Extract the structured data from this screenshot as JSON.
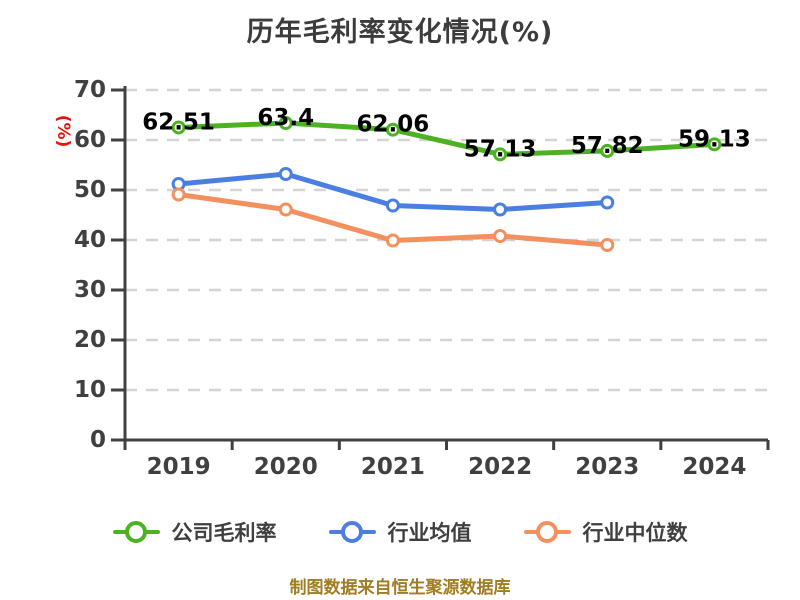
{
  "page": {
    "background": "#ffffff"
  },
  "footer": {
    "note": "制图数据来自恒生聚源数据库"
  },
  "chart_data": {
    "type": "line",
    "title": "历年毛利率变化情况(%)",
    "categories": [
      "2019",
      "2020",
      "2021",
      "2022",
      "2023",
      "2024"
    ],
    "y_axis": {
      "label": "(%)",
      "min": 0,
      "max": 70,
      "ticks": [
        0,
        10,
        20,
        30,
        40,
        50,
        60,
        70
      ],
      "label_color": "#e8120c"
    },
    "grid": {
      "horizontal_dashed": true,
      "color": "#d4d4d4"
    },
    "legend_position": "bottom",
    "series": [
      {
        "name": "公司毛利率",
        "color": "#4db222",
        "values": [
          62.51,
          63.4,
          62.06,
          57.13,
          57.82,
          59.13
        ],
        "point_labels": [
          "62.51",
          "63.4",
          "62.06",
          "57.13",
          "57.82",
          "59.13"
        ]
      },
      {
        "name": "行业均值",
        "color": "#4b7ee1",
        "values": [
          51.2,
          53.2,
          46.9,
          46.1,
          47.5,
          null
        ]
      },
      {
        "name": "行业中位数",
        "color": "#f2905e",
        "values": [
          49.1,
          46.1,
          39.9,
          40.8,
          39.0,
          null
        ]
      }
    ]
  }
}
